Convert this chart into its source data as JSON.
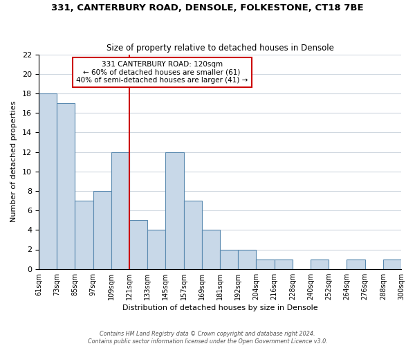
{
  "title1": "331, CANTERBURY ROAD, DENSOLE, FOLKESTONE, CT18 7BE",
  "title2": "Size of property relative to detached houses in Densole",
  "xlabel": "Distribution of detached houses by size in Densole",
  "ylabel": "Number of detached properties",
  "bin_labels": [
    "61sqm",
    "73sqm",
    "85sqm",
    "97sqm",
    "109sqm",
    "121sqm",
    "133sqm",
    "145sqm",
    "157sqm",
    "169sqm",
    "181sqm",
    "192sqm",
    "204sqm",
    "216sqm",
    "228sqm",
    "240sqm",
    "252sqm",
    "264sqm",
    "276sqm",
    "288sqm",
    "300sqm"
  ],
  "bar_heights": [
    18,
    17,
    7,
    8,
    12,
    5,
    4,
    12,
    7,
    4,
    2,
    2,
    1,
    1,
    0,
    1,
    0,
    1,
    0,
    1
  ],
  "bar_color": "#c8d8e8",
  "bar_edge_color": "#5a8ab0",
  "grid_color": "#d0d8e0",
  "vline_label_idx": 5,
  "vline_color": "#cc0000",
  "annotation_title": "331 CANTERBURY ROAD: 120sqm",
  "annotation_line1": "← 60% of detached houses are smaller (61)",
  "annotation_line2": "40% of semi-detached houses are larger (41) →",
  "annotation_box_color": "#ffffff",
  "annotation_box_edge": "#cc0000",
  "footer_line1": "Contains HM Land Registry data © Crown copyright and database right 2024.",
  "footer_line2": "Contains public sector information licensed under the Open Government Licence v3.0.",
  "ylim": [
    0,
    22
  ],
  "yticks": [
    0,
    2,
    4,
    6,
    8,
    10,
    12,
    14,
    16,
    18,
    20,
    22
  ]
}
